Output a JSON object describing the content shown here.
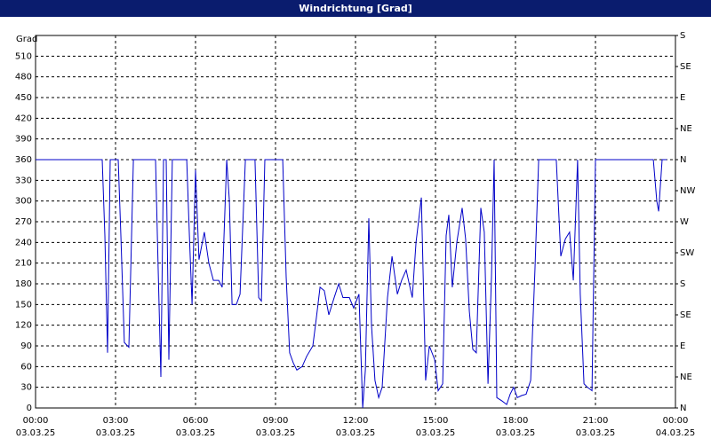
{
  "chart_data": {
    "type": "line",
    "title": "Windrichtung [Grad]",
    "y_label": "Grad",
    "xlim": [
      0,
      24
    ],
    "xticks": [
      {
        "value": 0,
        "label": "00:00",
        "date": "03.03.25"
      },
      {
        "value": 3,
        "label": "03:00",
        "date": "03.03.25"
      },
      {
        "value": 6,
        "label": "06:00",
        "date": "03.03.25"
      },
      {
        "value": 9,
        "label": "09:00",
        "date": "03.03.25"
      },
      {
        "value": 12,
        "label": "12:00",
        "date": "03.03.25"
      },
      {
        "value": 15,
        "label": "15:00",
        "date": "03.03.25"
      },
      {
        "value": 18,
        "label": "18:00",
        "date": "03.03.25"
      },
      {
        "value": 21,
        "label": "21:00",
        "date": "03.03.25"
      },
      {
        "value": 24,
        "label": "00:00",
        "date": "04.03.25"
      }
    ],
    "ylim": [
      0,
      540
    ],
    "yticks": [
      0,
      30,
      60,
      90,
      120,
      150,
      180,
      210,
      240,
      270,
      300,
      330,
      360,
      390,
      420,
      450,
      480,
      510
    ],
    "y2lim": [
      0,
      540
    ],
    "y2ticks": [
      {
        "value": 0,
        "label": "N"
      },
      {
        "value": 45,
        "label": "NE"
      },
      {
        "value": 90,
        "label": "E"
      },
      {
        "value": 135,
        "label": "SE"
      },
      {
        "value": 180,
        "label": "S"
      },
      {
        "value": 225,
        "label": "SW"
      },
      {
        "value": 270,
        "label": "W"
      },
      {
        "value": 315,
        "label": "NW"
      },
      {
        "value": 360,
        "label": "N"
      },
      {
        "value": 405,
        "label": "NE"
      },
      {
        "value": 450,
        "label": "E"
      },
      {
        "value": 495,
        "label": "SE"
      },
      {
        "value": 540,
        "label": "S"
      }
    ],
    "grid": true,
    "series": [
      {
        "name": "Windrichtung",
        "color": "#0000c8",
        "x": [
          0,
          2.5,
          2.6,
          2.7,
          2.8,
          3.1,
          3.2,
          3.33,
          3.5,
          3.67,
          4.5,
          4.6,
          4.7,
          4.8,
          4.9,
          5,
          5.13,
          5.67,
          5.77,
          5.87,
          6,
          6.13,
          6.33,
          6.5,
          6.67,
          6.87,
          7,
          7.17,
          7.27,
          7.37,
          7.53,
          7.67,
          7.87,
          8.23,
          8.37,
          8.47,
          8.6,
          9.27,
          9.4,
          9.53,
          9.67,
          9.8,
          10,
          10.17,
          10.4,
          10.53,
          10.67,
          10.83,
          11,
          11.2,
          11.37,
          11.53,
          11.77,
          11.93,
          12.13,
          12.27,
          12.37,
          12.5,
          12.6,
          12.73,
          12.87,
          13,
          13.2,
          13.37,
          13.57,
          13.73,
          13.9,
          14.13,
          14.27,
          14.47,
          14.63,
          14.77,
          14.97,
          15.1,
          15.27,
          15.4,
          15.5,
          15.63,
          15.8,
          16,
          16.13,
          16.27,
          16.4,
          16.53,
          16.7,
          16.83,
          16.97,
          17.1,
          17.2,
          17.3,
          17.5,
          17.67,
          17.8,
          17.93,
          18.07,
          18.23,
          18.4,
          18.57,
          18.73,
          18.87,
          19.53,
          19.7,
          19.87,
          20.03,
          20.17,
          20.33,
          20.43,
          20.57,
          20.7,
          20.87,
          21,
          23.17,
          23.3,
          23.37,
          23.5,
          23.67
        ],
        "values": [
          360,
          360,
          250,
          80,
          360,
          360,
          250,
          95,
          88,
          360,
          360,
          200,
          45,
          360,
          360,
          70,
          360,
          360,
          250,
          150,
          345,
          215,
          255,
          210,
          185,
          185,
          175,
          360,
          300,
          150,
          150,
          165,
          360,
          360,
          160,
          155,
          360,
          360,
          190,
          80,
          65,
          55,
          60,
          75,
          90,
          130,
          175,
          170,
          135,
          160,
          180,
          160,
          160,
          145,
          165,
          0,
          55,
          275,
          120,
          40,
          15,
          30,
          160,
          220,
          165,
          185,
          200,
          160,
          240,
          305,
          40,
          90,
          70,
          25,
          35,
          250,
          280,
          175,
          240,
          290,
          245,
          140,
          85,
          80,
          290,
          255,
          35,
          190,
          360,
          15,
          10,
          5,
          20,
          30,
          15,
          18,
          20,
          40,
          200,
          360,
          360,
          220,
          245,
          255,
          185,
          360,
          165,
          35,
          30,
          25,
          360,
          360,
          300,
          285,
          360,
          360
        ]
      }
    ]
  }
}
